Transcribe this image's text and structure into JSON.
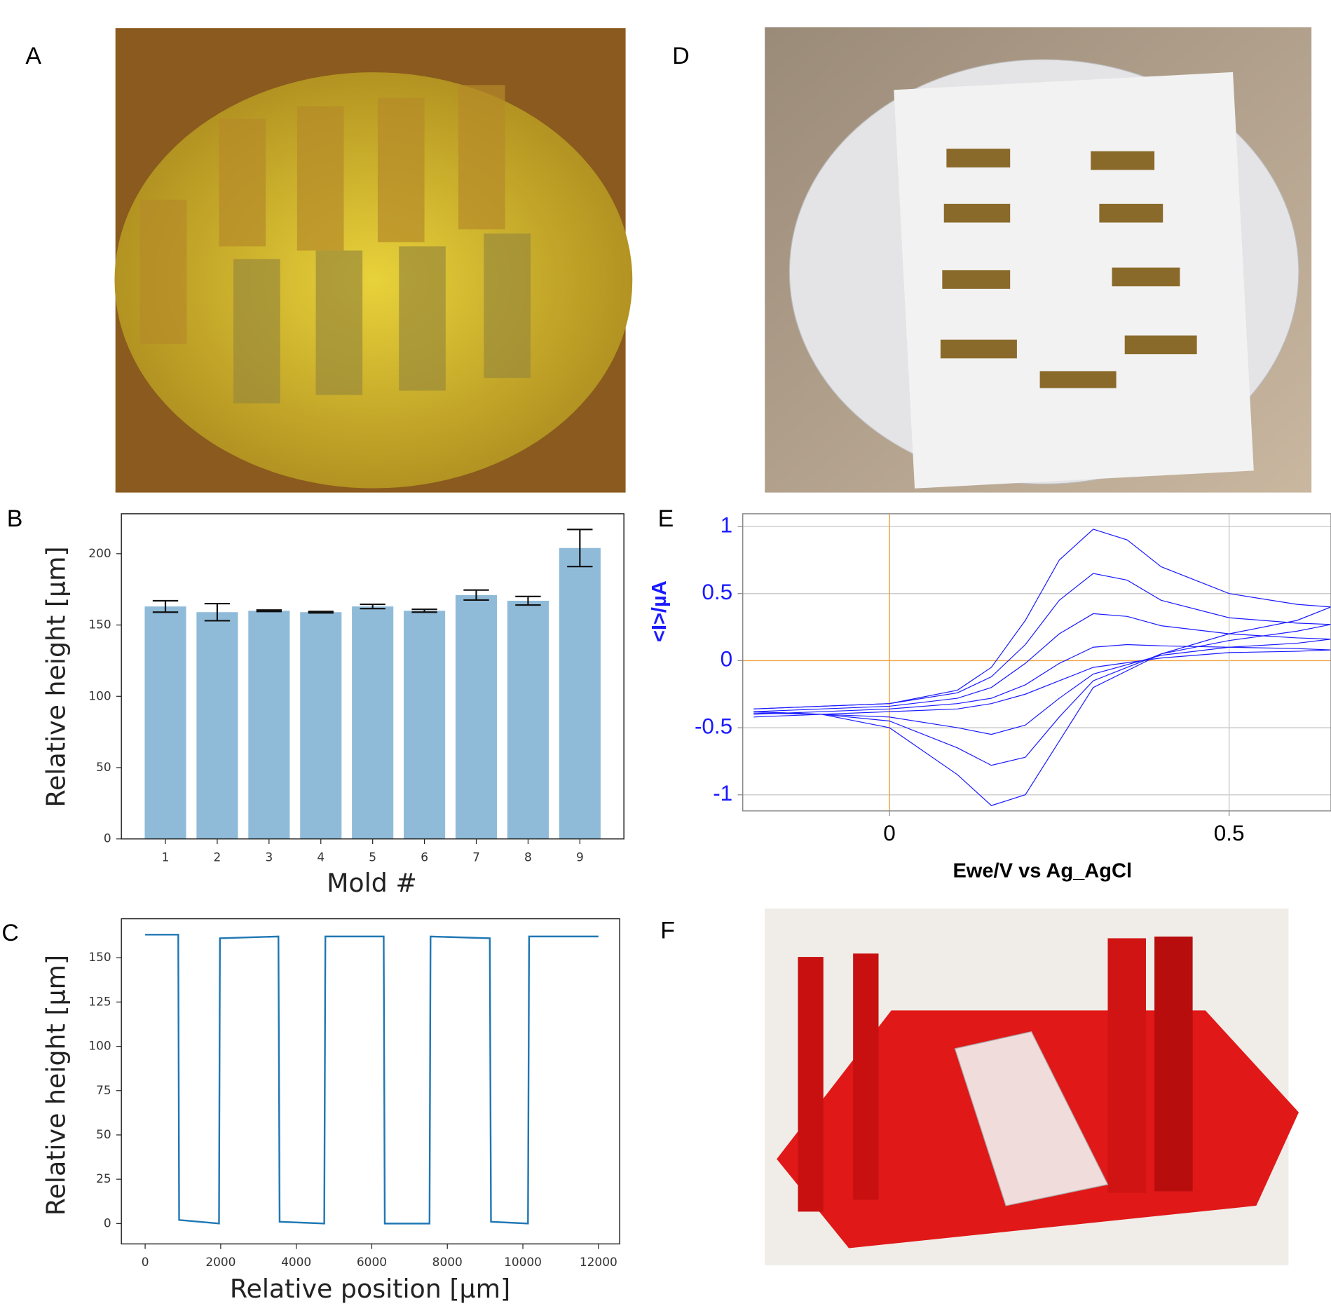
{
  "panel_labels": [
    "A",
    "B",
    "C",
    "D",
    "E",
    "F"
  ],
  "chart_data": [
    {
      "type": "bar",
      "xlabel": "Mold #",
      "ylabel": "Relative height [µm]",
      "categories": [
        "1",
        "2",
        "3",
        "4",
        "5",
        "6",
        "7",
        "8",
        "9"
      ],
      "values": [
        163,
        159,
        160,
        159,
        163,
        160,
        171,
        167,
        204
      ],
      "errors": [
        4,
        6,
        0.5,
        0.5,
        1.5,
        1,
        3.5,
        3,
        13
      ],
      "color": "#8fbbd9",
      "ylim": [
        0,
        228
      ],
      "yticks": [
        0,
        50,
        100,
        150,
        200
      ],
      "grid": false
    },
    {
      "type": "line",
      "xlabel": "Relative position [µm]",
      "ylabel": "Relative height [µm]",
      "series": [
        {
          "color": "#1f77b4",
          "x": [
            0,
            876,
            900,
            1955,
            1980,
            3528,
            3560,
            4742,
            4770,
            6315,
            6345,
            7528,
            7555,
            9124,
            9155,
            10135,
            10165,
            12000
          ],
          "values": [
            163,
            163,
            2,
            0,
            161,
            162,
            1,
            0,
            162,
            162,
            0,
            0,
            162,
            161,
            1,
            0,
            162,
            162
          ]
        }
      ],
      "xlim": [
        -629,
        12562
      ],
      "xticks": [
        0,
        2000,
        4000,
        6000,
        8000,
        10000,
        12000
      ],
      "ylim": [
        -11.5,
        172
      ],
      "yticks": [
        0,
        25,
        50,
        75,
        100,
        125,
        150
      ],
      "grid": false
    },
    {
      "type": "line",
      "xlabel": "Ewe/V vs Ag_AgCl",
      "ylabel": "<I>/µA",
      "series": [
        {
          "color": "#1a1aff",
          "x": [
            -0.2,
            -0.1,
            0,
            0.1,
            0.15,
            0.2,
            0.25,
            0.3,
            0.35,
            0.4,
            0.5,
            0.6,
            0.65,
            0.6,
            0.5,
            0.4,
            0.3,
            0.25,
            0.2,
            0.15,
            0.1,
            0,
            -0.1,
            -0.2
          ],
          "values": [
            -0.36,
            -0.34,
            -0.32,
            -0.22,
            -0.05,
            0.3,
            0.75,
            0.98,
            0.9,
            0.7,
            0.5,
            0.42,
            0.4,
            0.3,
            0.2,
            0.05,
            -0.2,
            -0.6,
            -1.0,
            -1.08,
            -0.85,
            -0.5,
            -0.4,
            -0.38
          ]
        },
        {
          "color": "#1a1aff",
          "x": [
            -0.2,
            -0.1,
            0,
            0.1,
            0.15,
            0.2,
            0.25,
            0.3,
            0.35,
            0.4,
            0.5,
            0.6,
            0.65,
            0.6,
            0.5,
            0.4,
            0.3,
            0.25,
            0.2,
            0.15,
            0.1,
            0,
            -0.1,
            -0.2
          ],
          "values": [
            -0.36,
            -0.34,
            -0.32,
            -0.24,
            -0.12,
            0.12,
            0.45,
            0.65,
            0.6,
            0.45,
            0.32,
            0.28,
            0.27,
            0.22,
            0.15,
            0.05,
            -0.15,
            -0.42,
            -0.72,
            -0.78,
            -0.65,
            -0.45,
            -0.4,
            -0.38
          ]
        },
        {
          "color": "#1a1aff",
          "x": [
            -0.2,
            -0.1,
            0,
            0.1,
            0.15,
            0.2,
            0.25,
            0.3,
            0.35,
            0.4,
            0.5,
            0.6,
            0.65,
            0.6,
            0.5,
            0.4,
            0.3,
            0.25,
            0.2,
            0.15,
            0.1,
            0,
            -0.1,
            -0.2
          ],
          "values": [
            -0.38,
            -0.36,
            -0.34,
            -0.28,
            -0.2,
            -0.02,
            0.2,
            0.35,
            0.33,
            0.26,
            0.2,
            0.17,
            0.16,
            0.13,
            0.1,
            0.04,
            -0.1,
            -0.28,
            -0.48,
            -0.55,
            -0.5,
            -0.42,
            -0.4,
            -0.39
          ]
        },
        {
          "color": "#1a1aff",
          "x": [
            -0.2,
            -0.1,
            0,
            0.1,
            0.15,
            0.2,
            0.25,
            0.3,
            0.35,
            0.4,
            0.5,
            0.6,
            0.65,
            0.6,
            0.5,
            0.4,
            0.3,
            0.25,
            0.2,
            0.15,
            0.1,
            0,
            -0.1,
            -0.2
          ],
          "values": [
            -0.4,
            -0.38,
            -0.36,
            -0.32,
            -0.28,
            -0.18,
            -0.02,
            0.1,
            0.12,
            0.11,
            0.1,
            0.09,
            0.08,
            0.07,
            0.06,
            0.02,
            -0.05,
            -0.15,
            -0.25,
            -0.32,
            -0.36,
            -0.38,
            -0.4,
            -0.42
          ]
        }
      ],
      "xlim": [
        -0.216,
        0.65
      ],
      "xticks": [
        0,
        0.5
      ],
      "ylim": [
        -1.12,
        1.095
      ],
      "yticks": [
        -1,
        -0.5,
        0,
        0.5,
        1
      ],
      "grid": true
    }
  ]
}
